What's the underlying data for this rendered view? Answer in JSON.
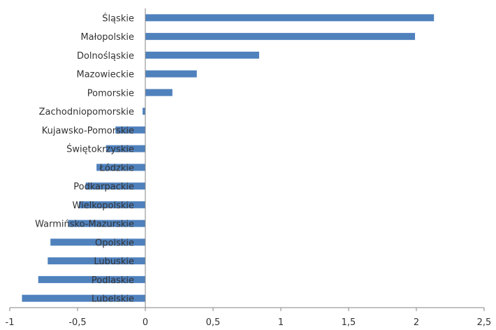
{
  "chart_data": {
    "type": "bar",
    "orientation": "horizontal",
    "title": "",
    "xlabel": "",
    "ylabel": "",
    "categories": [
      "Śląskie",
      "Małopolskie",
      "Dolnośląskie",
      "Mazowieckie",
      "Pomorskie",
      "Zachodniopomorskie",
      "Kujawsko-Pomorskie",
      "Świętokrzyskie",
      "Łódzkie",
      "Podkarpackie",
      "Wielkopolskie",
      "Warmińsko-Mazurskie",
      "Opolskie",
      "Lubuskie",
      "Podlaskie",
      "Lubelskie"
    ],
    "values": [
      2.13,
      1.99,
      0.84,
      0.38,
      0.2,
      -0.02,
      -0.22,
      -0.29,
      -0.36,
      -0.44,
      -0.49,
      -0.57,
      -0.7,
      -0.72,
      -0.79,
      -0.91
    ],
    "xlim": [
      -1,
      2.5
    ],
    "xticks": [
      "-1",
      "-0,5",
      "0",
      "0,5",
      "1",
      "1,5",
      "2",
      "2,5"
    ],
    "xtick_values": [
      -1,
      -0.5,
      0,
      0.5,
      1,
      1.5,
      2,
      2.5
    ],
    "grid": false,
    "legend": "none",
    "bar_color": "#4f81bd",
    "axis_color": "#868686"
  }
}
